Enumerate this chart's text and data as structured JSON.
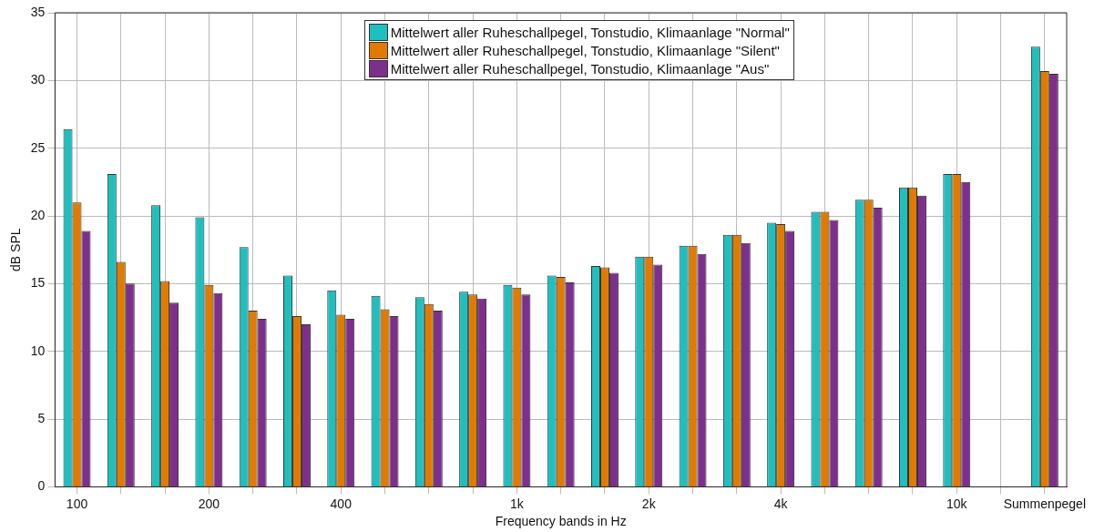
{
  "chart_data": {
    "type": "bar",
    "xlabel": "Frequency bands in Hz",
    "ylabel": "dB SPL",
    "categories": [
      "100",
      null,
      null,
      "200",
      null,
      null,
      "400",
      null,
      null,
      null,
      "1k",
      null,
      null,
      "2k",
      null,
      null,
      "4k",
      null,
      null,
      null,
      "10k",
      null,
      "Summenpegel"
    ],
    "series": [
      {
        "name": "Mittelwert aller Ruheschallpegel, Tonstudio, Klimaanlage \"Normal\"",
        "color": "#1fbfbf",
        "values": [
          26.4,
          23.1,
          20.8,
          19.9,
          17.7,
          15.6,
          14.5,
          14.1,
          14.0,
          14.4,
          14.9,
          15.6,
          16.3,
          17.0,
          17.8,
          18.6,
          19.5,
          20.3,
          21.2,
          22.1,
          23.1,
          null,
          32.5
        ]
      },
      {
        "name": "Mittelwert aller Ruheschallpegel, Tonstudio, Klimaanlage \"Silent\"",
        "color": "#e07b00",
        "values": [
          21.0,
          16.6,
          15.2,
          14.9,
          13.0,
          12.6,
          12.7,
          13.1,
          13.5,
          14.2,
          14.7,
          15.5,
          16.2,
          17.0,
          17.8,
          18.6,
          19.4,
          20.3,
          21.2,
          22.1,
          23.1,
          null,
          30.7
        ]
      },
      {
        "name": "Mittelwert aller Ruheschallpegel, Tonstudio, Klimaanlage \"Aus\"",
        "color": "#7e2f8e",
        "values": [
          18.9,
          15.0,
          13.6,
          14.3,
          12.4,
          12.0,
          12.4,
          12.6,
          13.0,
          13.9,
          14.2,
          15.1,
          15.8,
          16.4,
          17.2,
          18.0,
          18.9,
          19.7,
          20.6,
          21.5,
          22.5,
          null,
          30.5
        ]
      }
    ],
    "ylim": [
      0,
      35
    ],
    "yticks": [
      0,
      5,
      10,
      15,
      20,
      25,
      30,
      35
    ],
    "grid": true,
    "legend": "top"
  }
}
